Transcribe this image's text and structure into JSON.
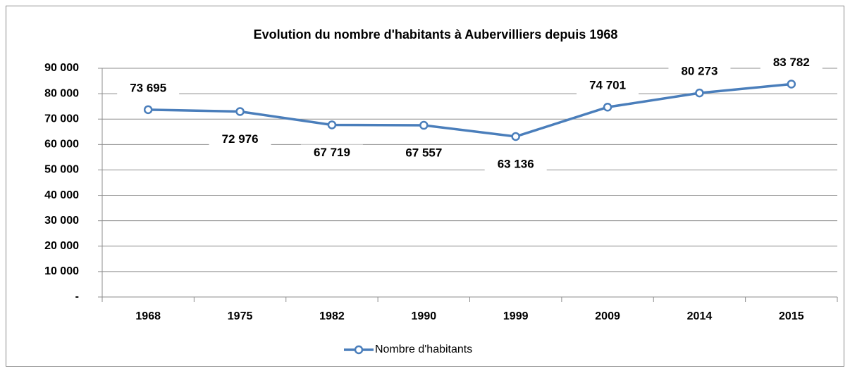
{
  "chart_data": {
    "type": "line",
    "title": "Evolution du nombre d'habitants à Aubervilliers depuis 1968",
    "categories": [
      "1968",
      "1975",
      "1982",
      "1990",
      "1999",
      "2009",
      "2014",
      "2015"
    ],
    "series": [
      {
        "name": "Nombre d'habitants",
        "color": "#4a7ebb",
        "values": [
          73695,
          72976,
          67719,
          67557,
          63136,
          74701,
          80273,
          83782
        ],
        "value_labels": [
          "73 695",
          "72 976",
          "67 719",
          "67 557",
          "63 136",
          "74 701",
          "80 273",
          "83 782"
        ]
      }
    ],
    "ylim": [
      0,
      90000
    ],
    "yticks": [
      {
        "value": 0,
        "label": "-"
      },
      {
        "value": 10000,
        "label": "10 000"
      },
      {
        "value": 20000,
        "label": "20 000"
      },
      {
        "value": 30000,
        "label": "30 000"
      },
      {
        "value": 40000,
        "label": "40 000"
      },
      {
        "value": 50000,
        "label": "50 000"
      },
      {
        "value": 60000,
        "label": "60 000"
      },
      {
        "value": 70000,
        "label": "70 000"
      },
      {
        "value": 80000,
        "label": "80 000"
      },
      {
        "value": 90000,
        "label": "90 000"
      }
    ],
    "grid": true,
    "legend": "bottom"
  }
}
